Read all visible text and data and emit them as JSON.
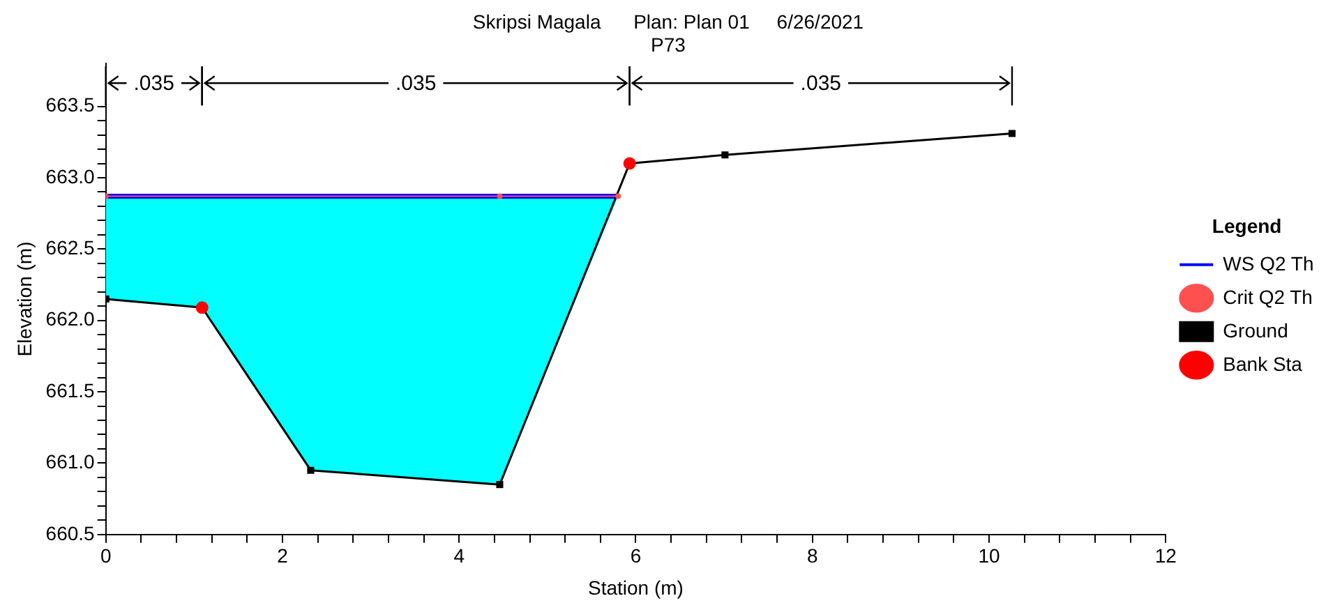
{
  "chart_data": {
    "type": "line",
    "title": "Skripsi Magala      Plan: Plan 01     6/26/2021",
    "subtitle": "P73",
    "xlabel": "Station (m)",
    "ylabel": "Elevation (m)",
    "legend_title": "Legend",
    "legend": "right",
    "annotations": [
      ".035",
      ".035",
      ".035"
    ],
    "xlim": [
      0,
      12
    ],
    "xticks": [
      0,
      {
        "value": 0.4,
        "label": null
      },
      {
        "value": 0.8,
        "label": null
      },
      {
        "value": 1.2,
        "label": null
      },
      {
        "value": 1.6,
        "label": null
      },
      2,
      {
        "value": 2.4,
        "label": null
      },
      {
        "value": 2.8,
        "label": null
      },
      {
        "value": 3.2,
        "label": null
      },
      {
        "value": 3.6,
        "label": null
      },
      4,
      {
        "value": 4.4,
        "label": null
      },
      {
        "value": 4.8,
        "label": null
      },
      {
        "value": 5.2,
        "label": null
      },
      {
        "value": 5.6,
        "label": null
      },
      6,
      {
        "value": 6.4,
        "label": null
      },
      {
        "value": 6.8,
        "label": null
      },
      {
        "value": 7.2,
        "label": null
      },
      {
        "value": 7.6,
        "label": null
      },
      8,
      {
        "value": 8.4,
        "label": null
      },
      {
        "value": 8.8,
        "label": null
      },
      {
        "value": 9.2,
        "label": null
      },
      {
        "value": 9.6,
        "label": null
      },
      10,
      {
        "value": 10.4,
        "label": null
      },
      {
        "value": 10.8,
        "label": null
      },
      {
        "value": 11.2,
        "label": null
      },
      {
        "value": 11.6,
        "label": null
      },
      12
    ],
    "ylim": [
      660.5,
      663.8
    ],
    "yticks": [
      660.5,
      {
        "value": 660.6,
        "label": null
      },
      {
        "value": 660.7,
        "label": null
      },
      {
        "value": 660.8,
        "label": null
      },
      {
        "value": 660.9,
        "label": null
      },
      {
        "value": 661,
        "label": "661.0"
      },
      {
        "value": 661.1,
        "label": null
      },
      {
        "value": 661.2,
        "label": null
      },
      {
        "value": 661.3,
        "label": null
      },
      {
        "value": 661.4,
        "label": null
      },
      661.5,
      {
        "value": 661.6,
        "label": null
      },
      {
        "value": 661.7,
        "label": null
      },
      {
        "value": 661.8,
        "label": null
      },
      {
        "value": 661.9,
        "label": null
      },
      {
        "value": 662,
        "label": "662.0"
      },
      {
        "value": 662.1,
        "label": null
      },
      {
        "value": 662.2,
        "label": null
      },
      {
        "value": 662.3,
        "label": null
      },
      {
        "value": 662.4,
        "label": null
      },
      662.5,
      {
        "value": 662.6,
        "label": null
      },
      {
        "value": 662.7,
        "label": null
      },
      {
        "value": 662.8,
        "label": null
      },
      {
        "value": 662.9,
        "label": null
      },
      {
        "value": 663,
        "label": "663.0"
      },
      {
        "value": 663.1,
        "label": null
      },
      {
        "value": 663.2,
        "label": null
      },
      {
        "value": 663.3,
        "label": null
      },
      {
        "value": 663.4,
        "label": null
      },
      663.5
    ],
    "grid": false,
    "series": [
      {
        "name": "WS Q2 Th",
        "color": "#0000ff",
        "marker": "none",
        "x": [
          0,
          1.09,
          2.32,
          4.46,
          5.8
        ],
        "values": [
          662.87,
          662.87,
          662.87,
          662.87,
          662.87
        ],
        "lower": [
          662.15,
          662.09,
          660.95,
          660.85,
          662.87
        ],
        "upper": [
          662.87,
          662.87,
          662.87,
          662.87,
          662.87
        ]
      },
      {
        "name": "Crit Q2 Th",
        "type": "line",
        "color": "#ff5050",
        "marker": "circle",
        "x": [
          0,
          4.46,
          5.8
        ],
        "values": [
          662.87,
          662.87,
          662.87
        ]
      },
      {
        "name": "Ground",
        "type": "line",
        "color": "#000000",
        "marker": "square",
        "x": [
          0,
          1.09,
          2.32,
          4.46,
          5.93,
          7.01,
          10.26
        ],
        "values": [
          662.15,
          662.09,
          660.95,
          660.85,
          663.1,
          663.16,
          663.31
        ]
      },
      {
        "name": "Bank Sta",
        "type": "scatter",
        "color": "#ff0000",
        "marker": "circle",
        "x": [
          1.09,
          5.93
        ],
        "values": [
          662.09,
          663.1
        ]
      }
    ]
  }
}
